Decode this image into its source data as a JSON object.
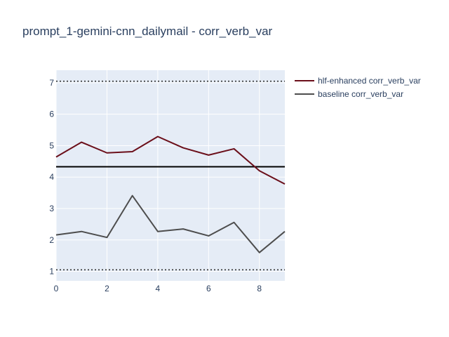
{
  "chart_data": {
    "type": "line",
    "title": "prompt_1-gemini-cnn_dailymail - corr_verb_var",
    "xlabel": "",
    "ylabel": "",
    "xlim": [
      0,
      9
    ],
    "ylim": [
      0.7,
      7.4
    ],
    "x_ticks": [
      0,
      2,
      4,
      6,
      8
    ],
    "y_ticks": [
      1,
      2,
      3,
      4,
      5,
      6,
      7
    ],
    "grid": true,
    "legend_position": "top-right",
    "x": [
      0,
      1,
      2,
      3,
      4,
      5,
      6,
      7,
      8,
      9
    ],
    "series": [
      {
        "name": "hlf-enhanced corr_verb_var",
        "color": "#6b0f1a",
        "values": [
          4.64,
          5.11,
          4.77,
          4.81,
          5.29,
          4.93,
          4.7,
          4.9,
          4.2,
          3.78
        ]
      },
      {
        "name": "baseline corr_verb_var",
        "color": "#4d4d4d",
        "values": [
          2.16,
          2.27,
          2.08,
          3.41,
          2.27,
          2.35,
          2.13,
          2.56,
          1.6,
          2.27
        ]
      }
    ],
    "reference_lines": [
      {
        "y": 7.05,
        "style": "dotted",
        "color": "#333333"
      },
      {
        "y": 4.33,
        "style": "solid",
        "color": "#000000"
      },
      {
        "y": 1.05,
        "style": "dotted",
        "color": "#333333"
      }
    ]
  }
}
